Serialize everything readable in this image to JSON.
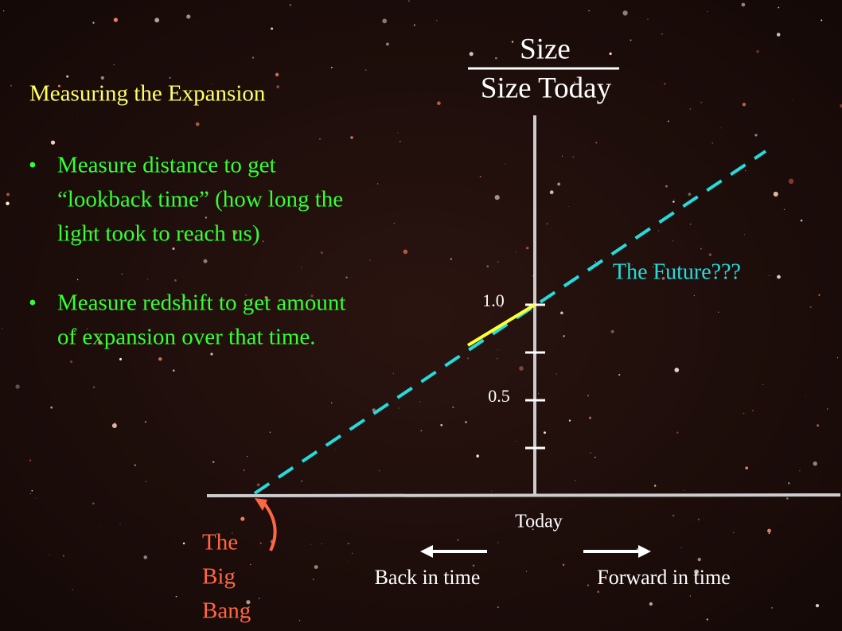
{
  "title": "Measuring the Expansion",
  "bullets": [
    {
      "lines": [
        "Measure distance to get",
        "“lookback time” (how long the",
        "light took to reach us)"
      ]
    },
    {
      "lines": [
        "Measure redshift to get amount",
        "of expansion over that time."
      ]
    }
  ],
  "diagram": {
    "y_axis_label": {
      "numerator": "Size",
      "denominator": "Size Today"
    },
    "tick_labels": [
      "1.0",
      "0.5"
    ],
    "x_axis_label": "Today",
    "future_label": "The Future???",
    "big_bang_label": [
      "The",
      "Big",
      "Bang"
    ],
    "back_label": "Back in time",
    "forward_label": "Forward in time"
  }
}
